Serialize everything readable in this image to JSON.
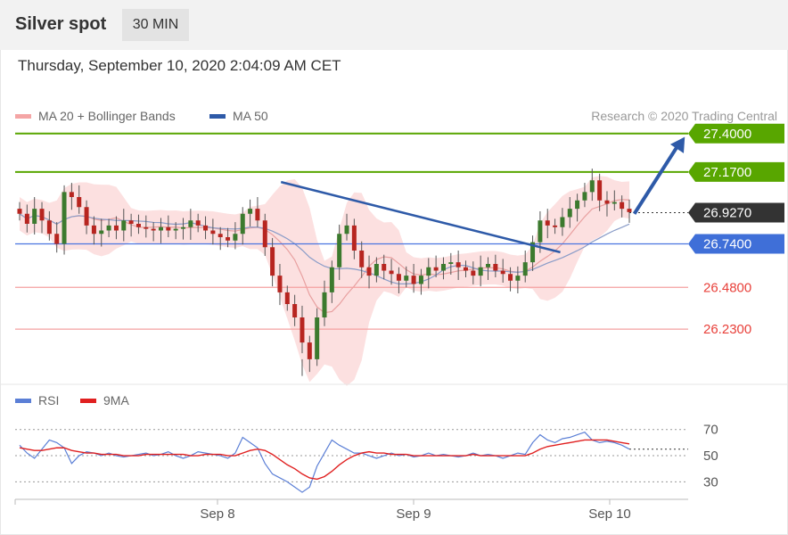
{
  "header": {
    "title": "Silver spot",
    "timeframe": "30 MIN"
  },
  "datetime": "Thursday, September 10, 2020 2:04:09 AM CET",
  "credit": "Research © 2020 Trading Central",
  "colors": {
    "bollinger": "#f08c8c",
    "ma50": "#2e5aa8",
    "resistance": "#58a600",
    "support": "#e8403a",
    "rsi": "#5b7fd6",
    "rsi_ma": "#e02020",
    "candle_up": "#3c7a2e",
    "candle_down": "#b72520"
  },
  "chart_data": [
    {
      "type": "candlestick",
      "legend": [
        {
          "name": "MA 20 + Bollinger Bands",
          "color": "#f08c8c"
        },
        {
          "name": "MA 50",
          "color": "#2e5aa8"
        }
      ],
      "x_ticks": [
        "Sep 8",
        "Sep 9",
        "Sep 10"
      ],
      "ylim": [
        25.9,
        27.5
      ],
      "current_price": {
        "label": "26.9270",
        "value": 26.927
      },
      "levels": [
        {
          "label": "27.4000",
          "value": 27.4,
          "kind": "resistance"
        },
        {
          "label": "27.1700",
          "value": 27.17,
          "kind": "resistance"
        },
        {
          "label": "26.7400",
          "value": 26.74,
          "kind": "pivot"
        },
        {
          "label": "26.4800",
          "value": 26.48,
          "kind": "support"
        },
        {
          "label": "26.2300",
          "value": 26.23,
          "kind": "support"
        }
      ],
      "trendline": {
        "from": [
          0.395,
          27.11
        ],
        "to": [
          0.81,
          26.69
        ]
      },
      "arrow": {
        "from": [
          0.92,
          26.92
        ],
        "to": [
          0.995,
          27.38
        ]
      },
      "close_path": [
        26.92,
        26.86,
        26.95,
        26.88,
        26.8,
        26.74,
        27.05,
        27.02,
        26.96,
        26.85,
        26.8,
        26.82,
        26.85,
        26.82,
        26.88,
        26.86,
        26.84,
        26.83,
        26.82,
        26.84,
        26.82,
        26.83,
        26.84,
        26.88,
        26.85,
        26.82,
        26.8,
        26.78,
        26.76,
        26.8,
        26.92,
        26.95,
        26.88,
        26.72,
        26.55,
        26.45,
        26.38,
        26.3,
        26.15,
        26.05,
        26.3,
        26.45,
        26.6,
        26.8,
        26.85,
        26.7,
        26.6,
        26.55,
        26.62,
        26.58,
        26.56,
        26.52,
        26.55,
        26.5,
        26.55,
        26.6,
        26.58,
        26.62,
        26.63,
        26.6,
        26.58,
        26.55,
        26.6,
        26.62,
        26.58,
        26.56,
        26.52,
        26.55,
        26.63,
        26.75,
        26.88,
        26.85,
        26.84,
        26.9,
        26.95,
        27.0,
        27.05,
        27.12,
        27.0,
        26.98,
        26.99,
        26.95,
        26.93
      ]
    },
    {
      "type": "line",
      "legend": [
        {
          "name": "RSI",
          "color": "#5b7fd6"
        },
        {
          "name": "9MA",
          "color": "#e02020"
        }
      ],
      "y_ticks": [
        30,
        50,
        70
      ],
      "ylim": [
        20,
        78
      ],
      "x_ticks": [
        "Sep 8",
        "Sep 9",
        "Sep 10"
      ],
      "series": [
        {
          "name": "RSI",
          "values": [
            58,
            52,
            48,
            55,
            62,
            60,
            56,
            44,
            50,
            53,
            52,
            50,
            52,
            50,
            49,
            50,
            51,
            52,
            50,
            51,
            53,
            50,
            48,
            50,
            53,
            52,
            51,
            50,
            48,
            52,
            64,
            60,
            56,
            44,
            36,
            33,
            30,
            26,
            22,
            26,
            42,
            52,
            62,
            58,
            55,
            52,
            52,
            50,
            48,
            50,
            52,
            50,
            51,
            49,
            50,
            52,
            50,
            51,
            50,
            49,
            50,
            52,
            50,
            51,
            50,
            48,
            50,
            52,
            51,
            60,
            66,
            62,
            60,
            63,
            64,
            66,
            68,
            62,
            60,
            61,
            60,
            58,
            55
          ]
        },
        {
          "name": "9MA",
          "values": [
            56,
            55,
            54,
            54,
            55,
            56,
            56,
            54,
            53,
            52,
            52,
            51,
            51,
            51,
            50,
            50,
            50,
            51,
            51,
            51,
            51,
            51,
            51,
            50,
            50,
            51,
            51,
            51,
            50,
            50,
            52,
            54,
            55,
            54,
            51,
            47,
            43,
            40,
            36,
            33,
            32,
            34,
            38,
            43,
            47,
            50,
            52,
            53,
            52,
            52,
            51,
            51,
            51,
            50,
            50,
            50,
            50,
            50,
            50,
            50,
            50,
            51,
            50,
            50,
            50,
            50,
            50,
            50,
            50,
            52,
            55,
            57,
            58,
            59,
            60,
            61,
            62,
            62,
            62,
            62,
            61,
            60,
            59
          ]
        }
      ]
    }
  ]
}
